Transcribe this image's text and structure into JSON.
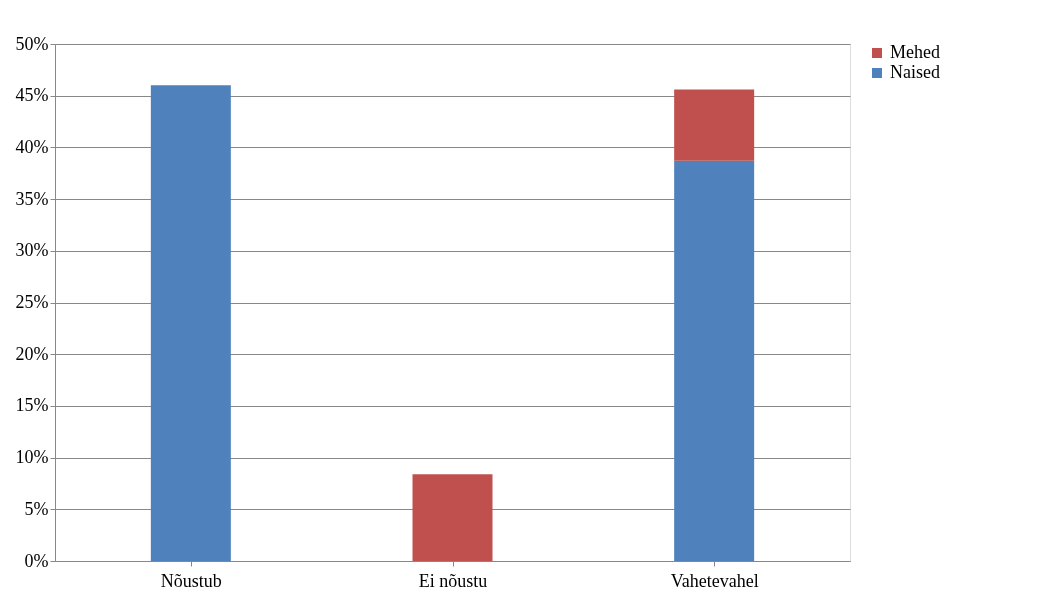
{
  "chart_data": {
    "type": "bar",
    "stacked": true,
    "categories": [
      "Nõustub",
      "Ei nõustu",
      "Vahetevahel"
    ],
    "series": [
      {
        "name": "Naised",
        "color": "#4f81bd",
        "values": [
          46.0,
          null,
          38.7
        ]
      },
      {
        "name": "Mehed",
        "color": "#c0504d",
        "values": [
          null,
          8.4,
          6.9
        ]
      }
    ],
    "ylim": [
      0,
      50
    ],
    "yticks": [
      {
        "value": 0,
        "label": "0%"
      },
      {
        "value": 5,
        "label": "5%"
      },
      {
        "value": 10,
        "label": "10%"
      },
      {
        "value": 15,
        "label": "15%"
      },
      {
        "value": 20,
        "label": "20%"
      },
      {
        "value": 25,
        "label": "25%"
      },
      {
        "value": 30,
        "label": "30%"
      },
      {
        "value": 35,
        "label": "35%"
      },
      {
        "value": 40,
        "label": "40%"
      },
      {
        "value": 45,
        "label": "45%"
      },
      {
        "value": 50,
        "label": "50%"
      }
    ],
    "grid": "y",
    "legend": "right"
  }
}
